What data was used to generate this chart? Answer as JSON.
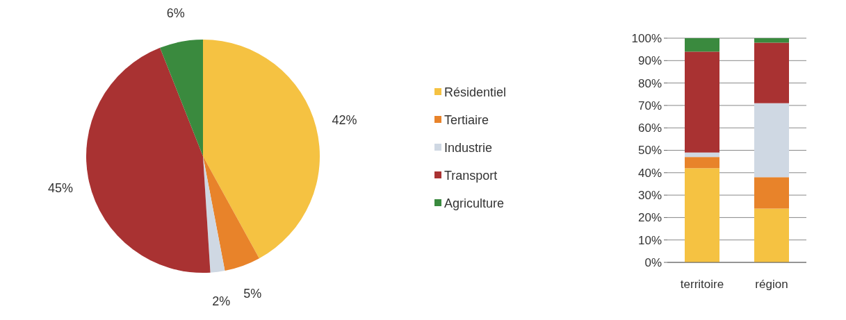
{
  "chart_data": [
    {
      "type": "pie",
      "categories": [
        "Résidentiel",
        "Tertiaire",
        "Industrie",
        "Transport",
        "Agriculture"
      ],
      "values": [
        42,
        5,
        2,
        45,
        6
      ],
      "colors": [
        "#f5c242",
        "#e8832a",
        "#cfd8e3",
        "#a93232",
        "#3a8a3e"
      ],
      "value_labels": [
        "42%",
        "5%",
        "2%",
        "45%",
        "6%"
      ],
      "legend": "right"
    },
    {
      "type": "bar",
      "stacked": true,
      "categories": [
        "territoire",
        "région"
      ],
      "series": [
        {
          "color": "#f5c242",
          "values": [
            42,
            24
          ]
        },
        {
          "color": "#e8832a",
          "values": [
            5,
            14
          ]
        },
        {
          "color": "#cfd8e3",
          "values": [
            2,
            33
          ]
        },
        {
          "color": "#a93232",
          "values": [
            45,
            27
          ]
        },
        {
          "color": "#3a8a3e",
          "values": [
            6,
            2
          ]
        }
      ],
      "ylim": [
        0,
        100
      ],
      "yticks": [
        {
          "value": 0,
          "label": "0%"
        },
        {
          "value": 10,
          "label": "10%"
        },
        {
          "value": 20,
          "label": "20%"
        },
        {
          "value": 30,
          "label": "30%"
        },
        {
          "value": 40,
          "label": "40%"
        },
        {
          "value": 50,
          "label": "50%"
        },
        {
          "value": 60,
          "label": "60%"
        },
        {
          "value": 70,
          "label": "70%"
        },
        {
          "value": 80,
          "label": "80%"
        },
        {
          "value": 90,
          "label": "90%"
        },
        {
          "value": 100,
          "label": "100%"
        }
      ],
      "grid": "y"
    }
  ]
}
